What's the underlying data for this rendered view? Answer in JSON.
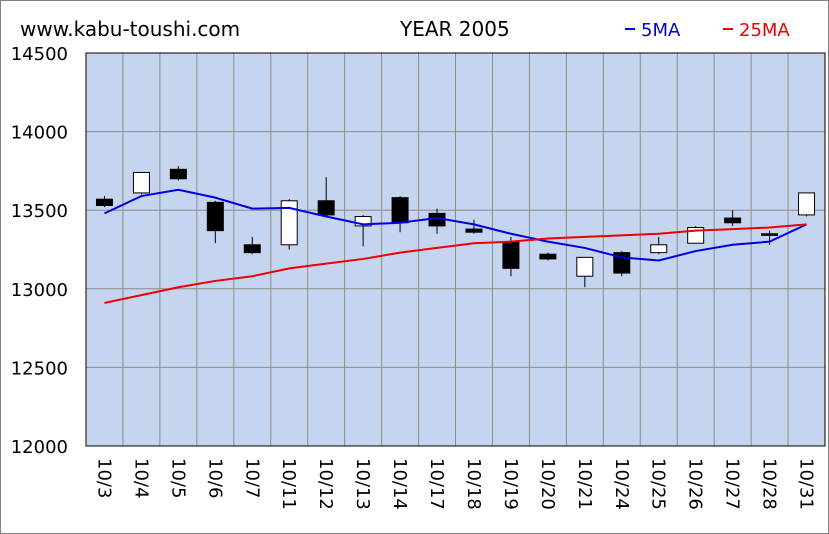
{
  "header": {
    "site": "www.kabu-toushi.com",
    "year_label": "YEAR 2005",
    "legend_5ma": "5MA",
    "legend_25ma": "25MA"
  },
  "colors": {
    "plot_bg": "#c5d5ef",
    "grid": "#8c8c8c",
    "ma5": "#0000dd",
    "ma25": "#ee0000",
    "up_candle": "#ffffff",
    "down_candle": "#000000"
  },
  "chart_data": {
    "type": "candlestick",
    "title": "YEAR 2005",
    "ylim": [
      12000,
      14500
    ],
    "yticks": [
      12000,
      12500,
      13000,
      13500,
      14000,
      14500
    ],
    "grid": true,
    "legend_position": "top-right",
    "categories": [
      "10/3",
      "10/4",
      "10/5",
      "10/6",
      "10/7",
      "10/11",
      "10/12",
      "10/13",
      "10/14",
      "10/17",
      "10/18",
      "10/19",
      "10/20",
      "10/21",
      "10/24",
      "10/25",
      "10/26",
      "10/27",
      "10/28",
      "10/31"
    ],
    "candles": [
      {
        "open": 13570,
        "high": 13590,
        "low": 13520,
        "close": 13530
      },
      {
        "open": 13610,
        "high": 13740,
        "low": 13600,
        "close": 13740
      },
      {
        "open": 13760,
        "high": 13780,
        "low": 13690,
        "close": 13700
      },
      {
        "open": 13550,
        "high": 13560,
        "low": 13290,
        "close": 13370
      },
      {
        "open": 13280,
        "high": 13330,
        "low": 13220,
        "close": 13230
      },
      {
        "open": 13280,
        "high": 13570,
        "low": 13250,
        "close": 13560
      },
      {
        "open": 13560,
        "high": 13710,
        "low": 13470,
        "close": 13470
      },
      {
        "open": 13400,
        "high": 13470,
        "low": 13270,
        "close": 13460
      },
      {
        "open": 13580,
        "high": 13590,
        "low": 13360,
        "close": 13420
      },
      {
        "open": 13480,
        "high": 13510,
        "low": 13350,
        "close": 13400
      },
      {
        "open": 13380,
        "high": 13440,
        "low": 13350,
        "close": 13360
      },
      {
        "open": 13300,
        "high": 13330,
        "low": 13080,
        "close": 13130
      },
      {
        "open": 13220,
        "high": 13230,
        "low": 13180,
        "close": 13190
      },
      {
        "open": 13080,
        "high": 13200,
        "low": 13010,
        "close": 13200
      },
      {
        "open": 13230,
        "high": 13240,
        "low": 13080,
        "close": 13100
      },
      {
        "open": 13230,
        "high": 13330,
        "low": 13220,
        "close": 13280
      },
      {
        "open": 13290,
        "high": 13400,
        "low": 13290,
        "close": 13390
      },
      {
        "open": 13450,
        "high": 13500,
        "low": 13400,
        "close": 13420
      },
      {
        "open": 13350,
        "high": 13370,
        "low": 13280,
        "close": 13340
      },
      {
        "open": 13470,
        "high": 13610,
        "low": 13460,
        "close": 13610
      }
    ],
    "series": [
      {
        "name": "5MA",
        "values": [
          13480,
          13590,
          13630,
          13580,
          13510,
          13515,
          13460,
          13410,
          13420,
          13450,
          13410,
          13350,
          13300,
          13260,
          13200,
          13180,
          13240,
          13280,
          13300,
          13410
        ]
      },
      {
        "name": "25MA",
        "values": [
          12910,
          12960,
          13010,
          13050,
          13080,
          13130,
          13160,
          13190,
          13230,
          13260,
          13290,
          13300,
          13320,
          13330,
          13340,
          13350,
          13370,
          13380,
          13390,
          13410
        ]
      }
    ]
  }
}
